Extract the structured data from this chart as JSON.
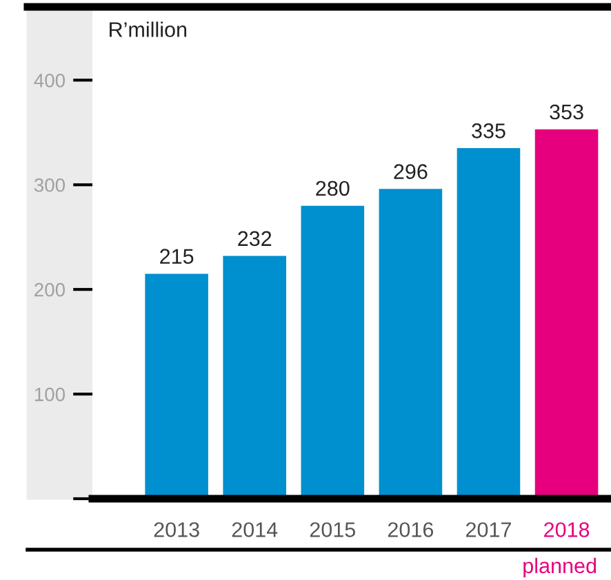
{
  "chart_data": {
    "type": "bar",
    "ylabel": "R’million",
    "categories": [
      "2013",
      "2014",
      "2015",
      "2016",
      "2017",
      "2018"
    ],
    "values": [
      215,
      232,
      280,
      296,
      335,
      353
    ],
    "colors": [
      "#008fcf",
      "#008fcf",
      "#008fcf",
      "#008fcf",
      "#008fcf",
      "#e6007e"
    ],
    "ylim": [
      0,
      470
    ],
    "yticks": [
      {
        "value": 0,
        "label": null
      },
      100,
      200,
      300,
      400
    ],
    "data_labels": true,
    "grid": false,
    "legend": false,
    "annotations": [
      "planned"
    ]
  }
}
